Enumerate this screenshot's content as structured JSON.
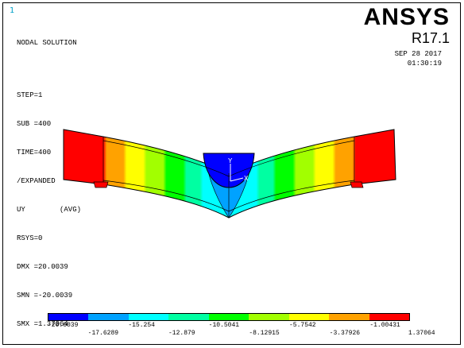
{
  "window_number": "1",
  "header": {
    "title": "NODAL SOLUTION",
    "step": "STEP=1",
    "sub": "SUB =400",
    "time": "TIME=400",
    "expanded": "/EXPANDED",
    "result": "UY        (AVG)",
    "rsys": "RSYS=0",
    "dmx": "DMX =20.0039",
    "smn": "SMN =-20.0039",
    "smx": "SMX =1.37064"
  },
  "brand": {
    "name": "ANSYS",
    "version": "R17.1",
    "date": "SEP 28 2017",
    "time": "01:30:19"
  },
  "triad": {
    "y_label": "Y",
    "x_label": "X"
  },
  "legend": {
    "colors": [
      "#0000ff",
      "#00a2ff",
      "#00ffff",
      "#00ffa2",
      "#00ff00",
      "#a2ff00",
      "#ffff00",
      "#ffa200",
      "#ff0000"
    ],
    "values_top": [
      "-20.0039",
      "-15.254",
      "-10.5041",
      "-5.7542",
      "-1.00431"
    ],
    "values_bottom": [
      "-17.6289",
      "-12.879",
      "-8.12915",
      "-3.37926",
      "1.37064"
    ]
  }
}
